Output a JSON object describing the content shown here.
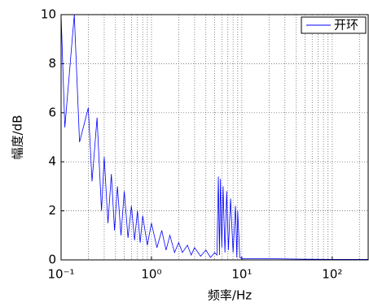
{
  "chart_data": {
    "type": "line",
    "xlabel": "频率/Hz",
    "ylabel": "幅度/dB",
    "xscale": "log",
    "grid": true,
    "legend": "upper right",
    "xlim": [
      0.1,
      250
    ],
    "ylim": [
      0,
      10
    ],
    "xticks": [
      {
        "value": 0.1,
        "label": "10⁻¹"
      },
      {
        "value": 1,
        "label": "10⁰"
      },
      {
        "value": 10,
        "label": "10¹"
      },
      {
        "value": 100,
        "label": "10²"
      }
    ],
    "xminorticks": [
      0.2,
      0.3,
      0.4,
      0.5,
      0.6,
      0.7,
      0.8,
      0.9,
      2,
      3,
      4,
      5,
      6,
      7,
      8,
      9,
      20,
      30,
      40,
      50,
      60,
      70,
      80,
      90,
      200
    ],
    "yticks": [
      0,
      2,
      4,
      6,
      8,
      10
    ],
    "x": [
      0.1,
      0.11,
      0.14,
      0.16,
      0.2,
      0.22,
      0.25,
      0.28,
      0.3,
      0.33,
      0.36,
      0.39,
      0.42,
      0.46,
      0.5,
      0.55,
      0.6,
      0.65,
      0.7,
      0.75,
      0.8,
      0.9,
      1,
      1.15,
      1.3,
      1.45,
      1.6,
      1.8,
      2,
      2.2,
      2.5,
      2.75,
      3,
      3.5,
      4,
      4.5,
      5,
      5.3,
      5.5,
      5.65,
      5.8,
      6,
      6.2,
      6.5,
      6.8,
      7.1,
      7.5,
      8,
      8.5,
      8.8,
      9,
      9.5,
      10,
      20,
      50,
      100,
      250
    ],
    "series": [
      {
        "name": "开环",
        "color": "#0000ff",
        "values": [
          10,
          5.4,
          10,
          4.8,
          6.2,
          3.2,
          5.8,
          2,
          4.2,
          1.5,
          3.5,
          1.2,
          3,
          1,
          2.8,
          0.9,
          2.2,
          0.8,
          2,
          0.7,
          1.8,
          0.6,
          1.5,
          0.5,
          1.2,
          0.4,
          1,
          0.3,
          0.7,
          0.3,
          0.6,
          0.2,
          0.5,
          0.15,
          0.4,
          0.1,
          0.3,
          0.2,
          3.4,
          0.2,
          3.3,
          0.5,
          3,
          0.3,
          2.8,
          0.4,
          2.5,
          0.3,
          2.2,
          0.1,
          2,
          0.1,
          0.05,
          0.05,
          0.03,
          0.02,
          0.02
        ]
      }
    ]
  }
}
